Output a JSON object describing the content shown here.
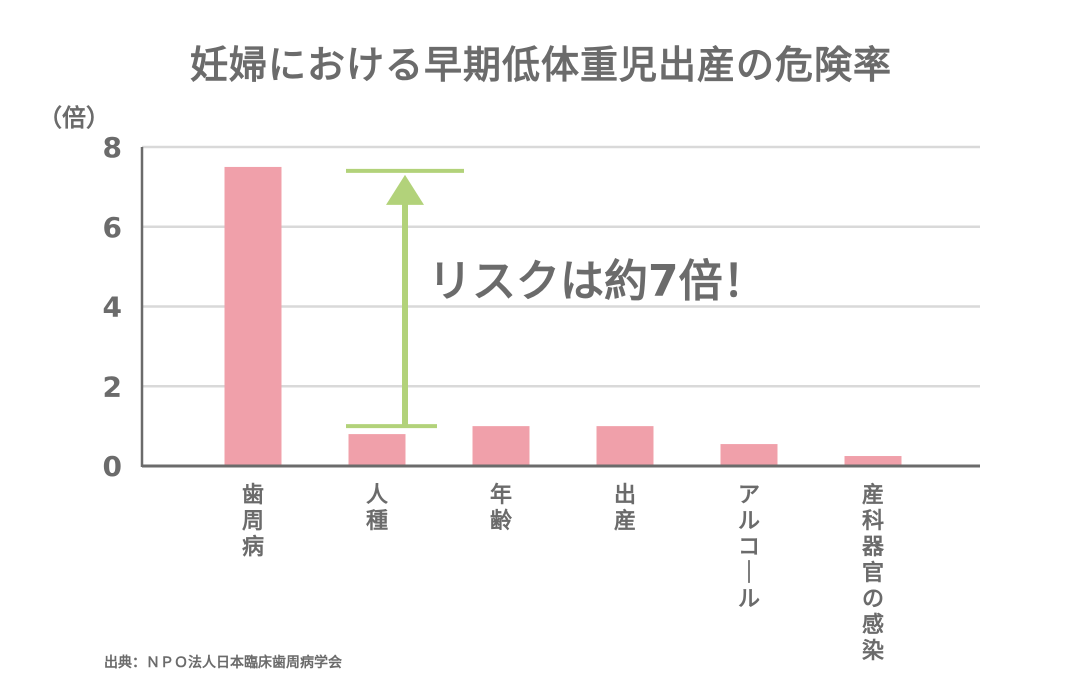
{
  "page_title": "妊婦における早期低体重児出産の危険率",
  "unit_label": "（倍）",
  "source_text": "出典：ＮＰＯ法人日本臨床歯周病学会",
  "colors": {
    "bar": "#f0a0aa",
    "grid": "#d9d9d9",
    "axis": "#6b6b6b",
    "annotation": "#b2d27a",
    "text": "#6b6b6b"
  },
  "annotation": {
    "text": "リスクは約7倍！",
    "top_value": 7.4,
    "bottom_value": 1.0
  },
  "chart_data": {
    "type": "bar",
    "title": "妊婦における早期低体重児出産の危険率",
    "ylabel": "（倍）",
    "xlabel": "",
    "categories": [
      "歯周病",
      "人種",
      "年齢",
      "出産",
      "アルコール",
      "産科器官の感染"
    ],
    "values": [
      7.5,
      0.8,
      1.0,
      1.0,
      0.55,
      0.25
    ],
    "ylim": [
      0,
      8
    ],
    "yticks": [
      0,
      2,
      4,
      6,
      8
    ],
    "grid": true,
    "legend": "none"
  }
}
